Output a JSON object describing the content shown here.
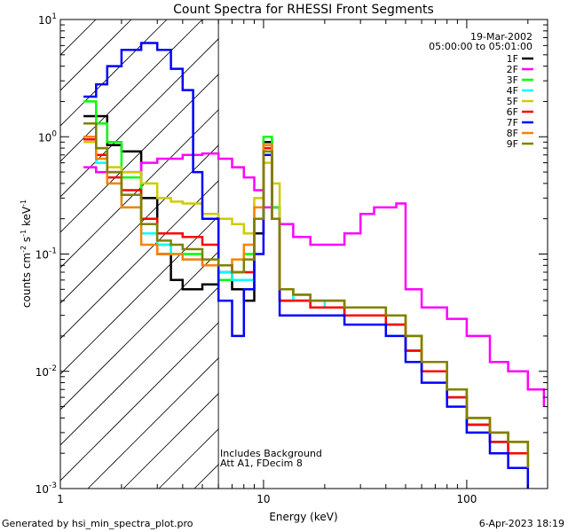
{
  "chart_data": {
    "type": "line",
    "title": "Count Spectra for RHESSI Front Segments",
    "xlabel": "Energy (keV)",
    "ylabel": "counts cm",
    "ylabel_sup1": "-2",
    "ylabel_mid": " s",
    "ylabel_sup2": "-1",
    "ylabel_end": " keV",
    "ylabel_sup3": "-1",
    "x_scale": "log",
    "y_scale": "log",
    "xlim": [
      1,
      250
    ],
    "ylim": [
      0.001,
      10
    ],
    "x_ticks": [
      {
        "value": 1,
        "label": "1"
      },
      {
        "value": 10,
        "label": "10"
      },
      {
        "value": 100,
        "label": "100"
      }
    ],
    "y_ticks": [
      {
        "value": 10,
        "base": "10",
        "exp": "1"
      },
      {
        "value": 1,
        "base": "10",
        "exp": "0"
      },
      {
        "value": 0.1,
        "base": "10",
        "exp": "-1"
      },
      {
        "value": 0.01,
        "base": "10",
        "exp": "-2"
      },
      {
        "value": 0.001,
        "base": "10",
        "exp": "-3"
      }
    ],
    "hatched_region_xmax": 6,
    "date": "19-Mar-2002",
    "time_range": "05:00:00 to 05:01:00",
    "annotation_line1": "Includes Background",
    "annotation_line2": "Att A1, FDecim 8",
    "legend_position": "top-right",
    "series": [
      {
        "name": "1F",
        "color": "#000000",
        "x": [
          1.3,
          1.5,
          1.7,
          2.0,
          2.5,
          3.0,
          3.5,
          4.0,
          5.0,
          6.0,
          7.0,
          8.0,
          9.0,
          10.0,
          11.0,
          12.0,
          14.0,
          17.0,
          20.0,
          25.0,
          30.0,
          40.0,
          50.0,
          60.0,
          80.0,
          100.0,
          130.0,
          160.0,
          200.0
        ],
        "y": [
          1.5,
          1.5,
          0.85,
          0.75,
          0.3,
          0.1,
          0.06,
          0.05,
          0.055,
          0.07,
          0.05,
          0.04,
          0.15,
          0.9,
          0.25,
          0.04,
          0.04,
          0.035,
          0.035,
          0.03,
          0.03,
          0.025,
          0.015,
          0.01,
          0.006,
          0.0035,
          0.0025,
          0.002,
          0.0015
        ]
      },
      {
        "name": "2F",
        "color": "#ff00ff",
        "x": [
          1.3,
          1.5,
          2.0,
          2.5,
          3.0,
          4.0,
          5.0,
          6.0,
          7.0,
          8.0,
          9.0,
          10.0,
          12.0,
          14.0,
          17.0,
          20.0,
          25.0,
          30.0,
          35.0,
          40.0,
          45.0,
          50.0,
          60.0,
          80.0,
          100.0,
          130.0,
          160.0,
          200.0,
          240.0
        ],
        "y": [
          0.55,
          0.5,
          0.5,
          0.6,
          0.65,
          0.7,
          0.72,
          0.65,
          0.55,
          0.45,
          0.35,
          0.25,
          0.18,
          0.14,
          0.12,
          0.12,
          0.15,
          0.22,
          0.25,
          0.25,
          0.27,
          0.05,
          0.035,
          0.028,
          0.02,
          0.012,
          0.01,
          0.007,
          0.005
        ]
      },
      {
        "name": "3F",
        "color": "#00ff00",
        "x": [
          1.3,
          1.5,
          1.7,
          2.0,
          2.5,
          3.0,
          3.5,
          4.0,
          5.0,
          6.0,
          7.0,
          8.0,
          9.0,
          10.0,
          11.0,
          12.0,
          14.0,
          17.0,
          20.0,
          25.0,
          30.0,
          40.0,
          50.0,
          60.0,
          80.0,
          100.0,
          130.0,
          160.0,
          200.0
        ],
        "y": [
          2.0,
          1.3,
          0.9,
          0.45,
          0.2,
          0.12,
          0.1,
          0.1,
          0.08,
          0.06,
          0.07,
          0.1,
          0.2,
          1.0,
          0.25,
          0.05,
          0.045,
          0.04,
          0.04,
          0.035,
          0.035,
          0.03,
          0.02,
          0.012,
          0.007,
          0.004,
          0.003,
          0.0025,
          0.0015
        ]
      },
      {
        "name": "4F",
        "color": "#00ffff",
        "x": [
          1.3,
          1.5,
          1.7,
          2.0,
          2.5,
          3.0,
          3.5,
          4.0,
          5.0,
          6.0,
          7.0,
          8.0,
          9.0,
          10.0,
          11.0,
          12.0,
          14.0,
          17.0,
          20.0,
          25.0,
          30.0,
          40.0,
          50.0,
          60.0,
          80.0,
          100.0,
          130.0,
          160.0,
          200.0
        ],
        "y": [
          1.3,
          0.6,
          0.4,
          0.25,
          0.15,
          0.12,
          0.1,
          0.09,
          0.08,
          0.07,
          0.06,
          0.06,
          0.2,
          0.8,
          0.2,
          0.05,
          0.04,
          0.04,
          0.035,
          0.03,
          0.03,
          0.025,
          0.015,
          0.01,
          0.006,
          0.003,
          0.0025,
          0.002,
          0.0012
        ]
      },
      {
        "name": "5F",
        "color": "#cccc00",
        "x": [
          1.3,
          1.5,
          1.7,
          2.0,
          2.5,
          3.0,
          3.5,
          4.0,
          5.0,
          6.0,
          7.0,
          8.0,
          9.0,
          10.0,
          11.0,
          12.0,
          14.0,
          17.0,
          20.0,
          25.0,
          30.0,
          40.0,
          50.0,
          60.0,
          80.0,
          100.0,
          130.0,
          160.0,
          200.0
        ],
        "y": [
          0.9,
          0.8,
          0.55,
          0.5,
          0.4,
          0.3,
          0.28,
          0.27,
          0.22,
          0.2,
          0.18,
          0.15,
          0.3,
          0.6,
          0.4,
          0.05,
          0.045,
          0.04,
          0.04,
          0.035,
          0.035,
          0.03,
          0.02,
          0.012,
          0.007,
          0.004,
          0.003,
          0.0025,
          0.0015
        ]
      },
      {
        "name": "6F",
        "color": "#ff0000",
        "x": [
          1.3,
          1.5,
          1.7,
          2.0,
          2.5,
          3.0,
          3.5,
          4.0,
          5.0,
          6.0,
          7.0,
          8.0,
          9.0,
          10.0,
          11.0,
          12.0,
          14.0,
          17.0,
          20.0,
          25.0,
          30.0,
          40.0,
          50.0,
          60.0,
          80.0,
          100.0,
          130.0,
          160.0,
          200.0
        ],
        "y": [
          0.95,
          0.7,
          0.45,
          0.35,
          0.2,
          0.15,
          0.15,
          0.14,
          0.12,
          0.08,
          0.07,
          0.07,
          0.2,
          0.8,
          0.2,
          0.04,
          0.04,
          0.035,
          0.035,
          0.03,
          0.03,
          0.025,
          0.015,
          0.01,
          0.006,
          0.0035,
          0.0025,
          0.002,
          0.0015
        ]
      },
      {
        "name": "7F",
        "color": "#0000ff",
        "x": [
          1.3,
          1.5,
          1.7,
          2.0,
          2.5,
          3.0,
          3.5,
          4.0,
          4.5,
          5.0,
          6.0,
          7.0,
          8.0,
          9.0,
          10.0,
          11.0,
          12.0,
          14.0,
          17.0,
          20.0,
          25.0,
          30.0,
          40.0,
          50.0,
          60.0,
          80.0,
          100.0,
          130.0,
          160.0,
          200.0
        ],
        "y": [
          2.2,
          2.8,
          4.0,
          5.5,
          6.3,
          5.5,
          3.8,
          2.5,
          0.5,
          0.2,
          0.04,
          0.02,
          0.05,
          0.1,
          0.7,
          0.2,
          0.03,
          0.03,
          0.03,
          0.03,
          0.025,
          0.025,
          0.02,
          0.012,
          0.008,
          0.005,
          0.003,
          0.002,
          0.0015,
          0.001
        ]
      },
      {
        "name": "8F",
        "color": "#ff8000",
        "x": [
          1.3,
          1.5,
          1.7,
          2.0,
          2.5,
          3.0,
          3.5,
          4.0,
          5.0,
          6.0,
          7.0,
          8.0,
          9.0,
          10.0,
          11.0,
          12.0,
          14.0,
          17.0,
          20.0,
          25.0,
          30.0,
          40.0,
          50.0,
          60.0,
          80.0,
          100.0,
          130.0,
          160.0,
          200.0
        ],
        "y": [
          1.0,
          0.65,
          0.4,
          0.25,
          0.12,
          0.1,
          0.1,
          0.09,
          0.08,
          0.08,
          0.09,
          0.12,
          0.25,
          0.85,
          0.2,
          0.05,
          0.045,
          0.04,
          0.04,
          0.035,
          0.035,
          0.03,
          0.02,
          0.012,
          0.007,
          0.004,
          0.003,
          0.0025,
          0.0015
        ]
      },
      {
        "name": "9F",
        "color": "#808000",
        "x": [
          1.3,
          1.5,
          1.7,
          2.0,
          2.5,
          3.0,
          3.5,
          4.0,
          5.0,
          6.0,
          7.0,
          8.0,
          9.0,
          10.0,
          11.0,
          12.0,
          14.0,
          17.0,
          20.0,
          25.0,
          30.0,
          40.0,
          50.0,
          60.0,
          80.0,
          100.0,
          130.0,
          160.0,
          200.0
        ],
        "y": [
          1.3,
          0.8,
          0.5,
          0.32,
          0.18,
          0.13,
          0.12,
          0.11,
          0.09,
          0.08,
          0.07,
          0.09,
          0.2,
          0.75,
          0.2,
          0.05,
          0.045,
          0.04,
          0.04,
          0.035,
          0.035,
          0.03,
          0.02,
          0.012,
          0.007,
          0.004,
          0.003,
          0.0025,
          0.0015
        ]
      }
    ]
  },
  "footer": {
    "generated_by": "Generated by hsi_min_spectra_plot.pro",
    "timestamp": "6-Apr-2023 18:19"
  }
}
